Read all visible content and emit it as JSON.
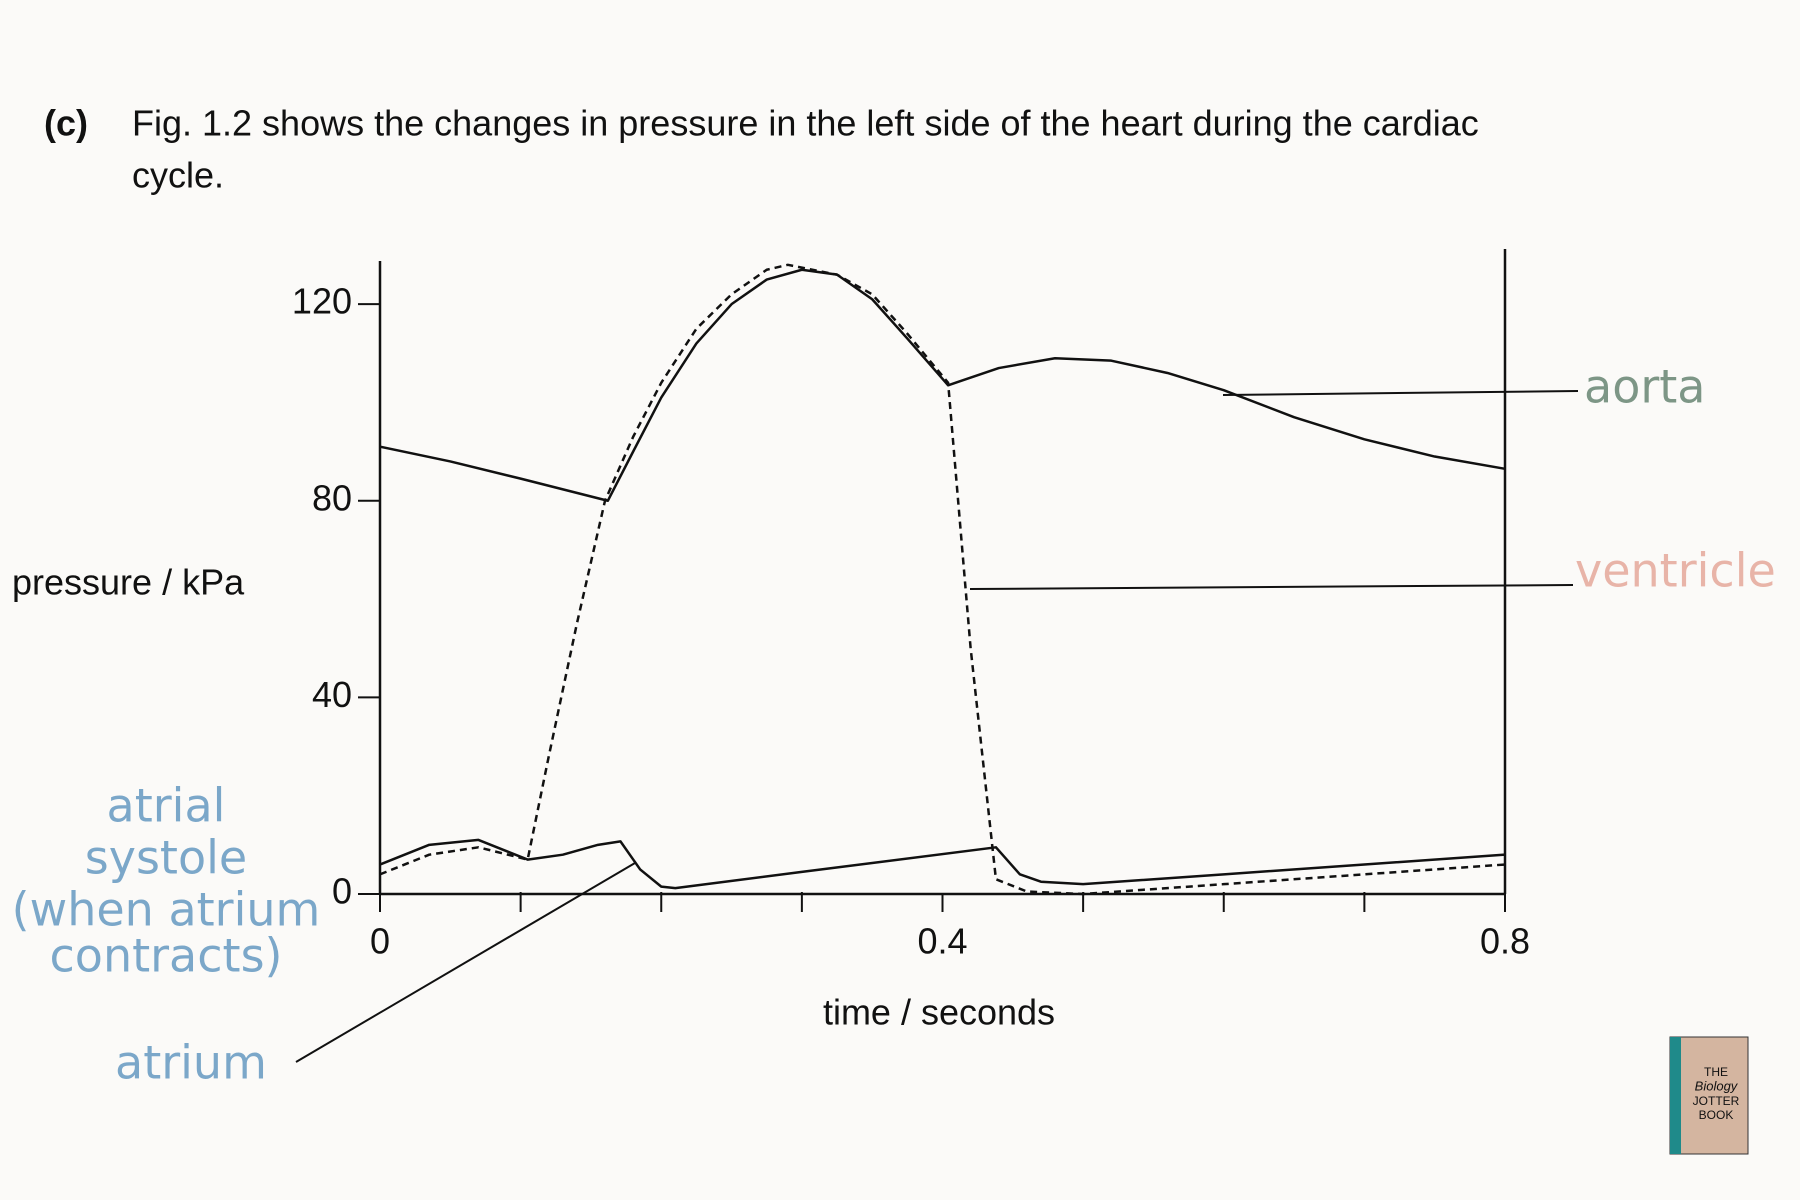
{
  "question": {
    "label": "(c)",
    "lines": [
      "Fig. 1.2 shows the changes in pressure in the left side of the heart during the cardiac",
      "cycle."
    ]
  },
  "chart_data": {
    "type": "line",
    "xlabel": "time / seconds",
    "ylabel": "pressure / kPa",
    "xlim": [
      0,
      0.8
    ],
    "ylim": [
      0,
      130
    ],
    "xticks": [
      0,
      0.4,
      0.8
    ],
    "xminor_ticks": [
      0.1,
      0.2,
      0.3,
      0.5,
      0.6,
      0.7
    ],
    "yticks": [
      0,
      40,
      80,
      120
    ],
    "series": [
      {
        "name": "aorta",
        "color": "#111111",
        "style": "solid",
        "label_color": "#7d9686",
        "x": [
          0,
          0.05,
          0.1,
          0.162,
          0.18,
          0.2,
          0.225,
          0.25,
          0.275,
          0.3,
          0.325,
          0.35,
          0.375,
          0.404,
          0.44,
          0.48,
          0.52,
          0.56,
          0.6,
          0.65,
          0.7,
          0.75,
          0.8
        ],
        "values": [
          91,
          88,
          84.5,
          80,
          90,
          101,
          112,
          120,
          125,
          127,
          126,
          121,
          113,
          103.5,
          107,
          109,
          108.5,
          106,
          102.5,
          97,
          92.5,
          89,
          86.5
        ]
      },
      {
        "name": "ventricle",
        "color": "#111111",
        "style": "dashed",
        "label_color": "#e8b4a8",
        "x": [
          0,
          0.035,
          0.07,
          0.105,
          0.12,
          0.14,
          0.16,
          0.18,
          0.2,
          0.225,
          0.25,
          0.275,
          0.29,
          0.325,
          0.35,
          0.375,
          0.404,
          0.42,
          0.438,
          0.46,
          0.5,
          0.6,
          0.7,
          0.8
        ],
        "values": [
          4,
          8,
          9.5,
          7,
          28,
          55,
          80,
          93,
          104,
          115,
          122,
          127,
          128,
          126,
          122,
          114,
          104,
          50,
          3,
          0.5,
          0,
          2,
          4,
          6
        ]
      },
      {
        "name": "atrium",
        "color": "#111111",
        "style": "solid",
        "label_color": "#7ba7c9",
        "x": [
          0,
          0.035,
          0.07,
          0.105,
          0.13,
          0.155,
          0.171,
          0.185,
          0.2,
          0.21,
          0.3,
          0.438,
          0.455,
          0.47,
          0.5,
          0.6,
          0.7,
          0.8
        ],
        "values": [
          6,
          10,
          11,
          7,
          8,
          10,
          10.7,
          5,
          1.5,
          1.2,
          4.5,
          9.5,
          4,
          2.5,
          2,
          4,
          6,
          8
        ]
      }
    ],
    "annotations": [
      {
        "lines": [
          "atrial",
          "systole",
          "(when atrium",
          "contracts)"
        ],
        "color": "#7ba7c9"
      }
    ]
  },
  "logo": {
    "lines": [
      "THE",
      "Biology",
      "JOTTER",
      "BOOK"
    ]
  }
}
